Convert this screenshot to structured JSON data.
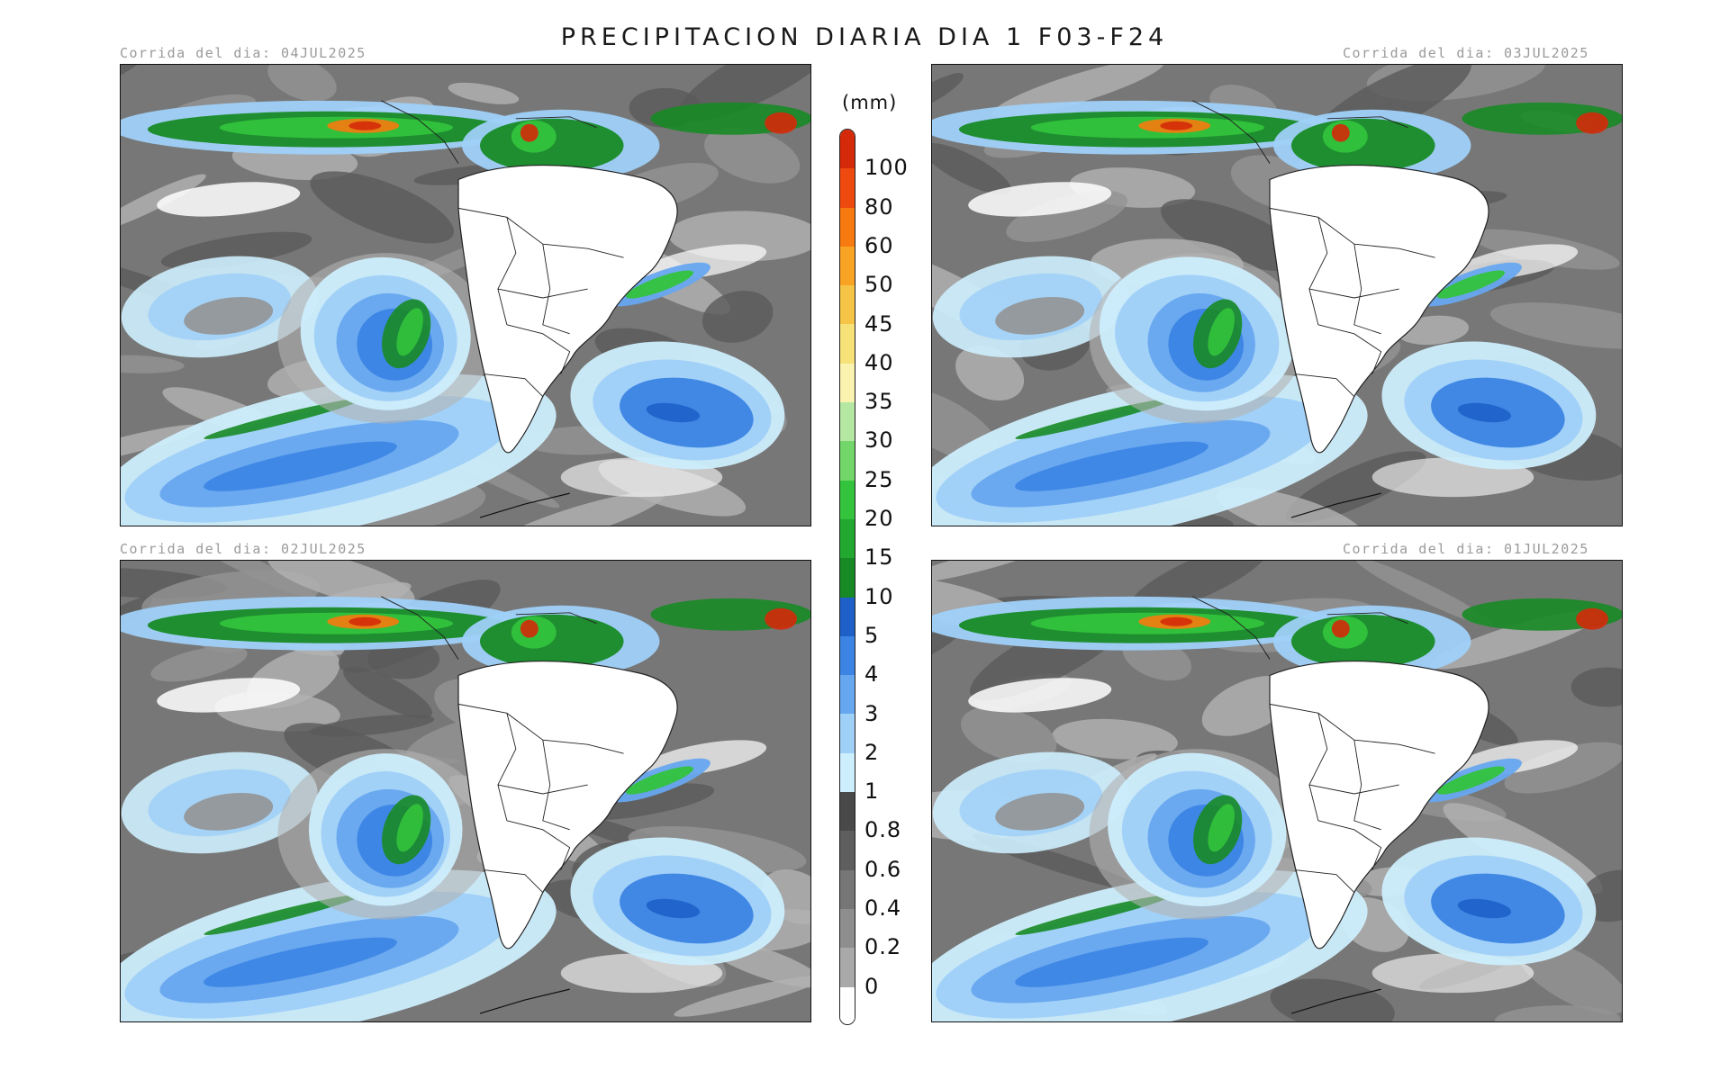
{
  "title": "PRECIPITACION DIARIA DIA 1 F03-F24",
  "panels": [
    {
      "run_label": "Corrida del dia: 04JUL2025"
    },
    {
      "run_label": "Corrida del dia: 03JUL2025"
    },
    {
      "run_label": "Corrida del dia: 02JUL2025"
    },
    {
      "run_label": "Corrida del dia: 01JUL2025"
    }
  ],
  "colorbar": {
    "unit": "(mm)",
    "levels": [
      {
        "label": "100",
        "color": "#d42a0a"
      },
      {
        "label": "80",
        "color": "#ee4a0f"
      },
      {
        "label": "60",
        "color": "#f77a10"
      },
      {
        "label": "50",
        "color": "#f9a324"
      },
      {
        "label": "45",
        "color": "#f6c548"
      },
      {
        "label": "40",
        "color": "#f7e27a"
      },
      {
        "label": "35",
        "color": "#faf3b0"
      },
      {
        "label": "30",
        "color": "#b4e8a2"
      },
      {
        "label": "25",
        "color": "#72d66a"
      },
      {
        "label": "20",
        "color": "#33c33c"
      },
      {
        "label": "15",
        "color": "#22a830"
      },
      {
        "label": "10",
        "color": "#178a25"
      },
      {
        "label": "5",
        "color": "#1e60c8"
      },
      {
        "label": "4",
        "color": "#3c84e4"
      },
      {
        "label": "3",
        "color": "#67a7ef"
      },
      {
        "label": "2",
        "color": "#9fd0f8"
      },
      {
        "label": "1",
        "color": "#cdeefd"
      },
      {
        "label": "0.8",
        "color": "#494949"
      },
      {
        "label": "0.6",
        "color": "#5e5e5e"
      },
      {
        "label": "0.4",
        "color": "#767676"
      },
      {
        "label": "0.2",
        "color": "#8e8e8e"
      },
      {
        "label": "0",
        "color": "#a9a9a9"
      }
    ],
    "bottom_color": "#ffffff"
  }
}
